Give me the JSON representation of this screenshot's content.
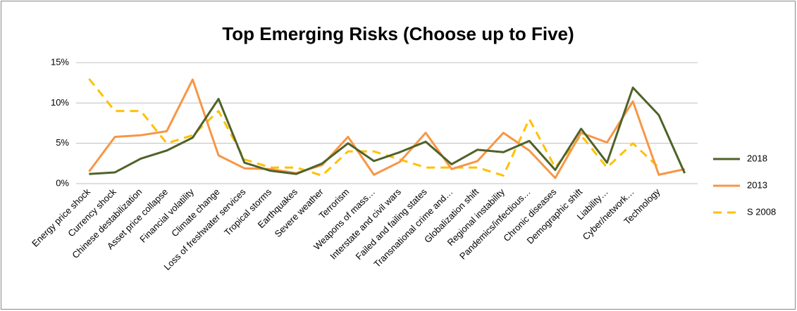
{
  "chart_data": {
    "type": "line",
    "title": "Top Emerging Risks (Choose up to Five)",
    "categories": [
      "Energy price shock",
      "Currency shock",
      "Chinese destabilization",
      "Asset price collapse",
      "Financial volatility",
      "Climate change",
      "Loss of freshwater services",
      "Tropical storms",
      "Earthquakes",
      "Severe weather",
      "Terrorism",
      "Weapons of mass…",
      "Interstate and civil wars",
      "Failed and failing states",
      "Transnational crime and…",
      "Globalization shift",
      "Regional instability",
      "Pandemics/infectious…",
      "Chronic diseases",
      "Demographic shift",
      "Liability…",
      "Cyber/network…",
      "Technology",
      null
    ],
    "series": [
      {
        "name": "2018",
        "color": "#4f6228",
        "dash": false,
        "values": [
          1.2,
          1.4,
          3.1,
          4.1,
          5.7,
          10.5,
          2.6,
          1.6,
          1.2,
          2.5,
          5.0,
          2.8,
          3.9,
          5.2,
          2.4,
          4.2,
          3.9,
          5.3,
          1.7,
          6.8,
          2.6,
          11.9,
          8.5,
          1.3
        ]
      },
      {
        "name": "2013",
        "color": "#f79646",
        "dash": false,
        "values": [
          1.5,
          5.8,
          6.0,
          6.5,
          12.9,
          3.5,
          1.9,
          1.8,
          1.3,
          2.3,
          5.8,
          1.1,
          2.7,
          6.3,
          1.8,
          2.8,
          6.3,
          4.1,
          0.7,
          6.3,
          5.1,
          10.2,
          1.1,
          1.8
        ]
      },
      {
        "name": "S 2008",
        "color": "#ffc000",
        "dash": true,
        "values": [
          13,
          9,
          9,
          5,
          6,
          9,
          3,
          2,
          2,
          1,
          4,
          4,
          3,
          2,
          2,
          2,
          1,
          8,
          2,
          6,
          2,
          5,
          2,
          null
        ]
      }
    ],
    "ylim": [
      0,
      15
    ],
    "yticks": [
      {
        "value": 0,
        "label": "0%"
      },
      {
        "value": 5,
        "label": "5%"
      },
      {
        "value": 10,
        "label": "10%"
      },
      {
        "value": 15,
        "label": "15%"
      }
    ],
    "grid": true,
    "legend": "right"
  }
}
